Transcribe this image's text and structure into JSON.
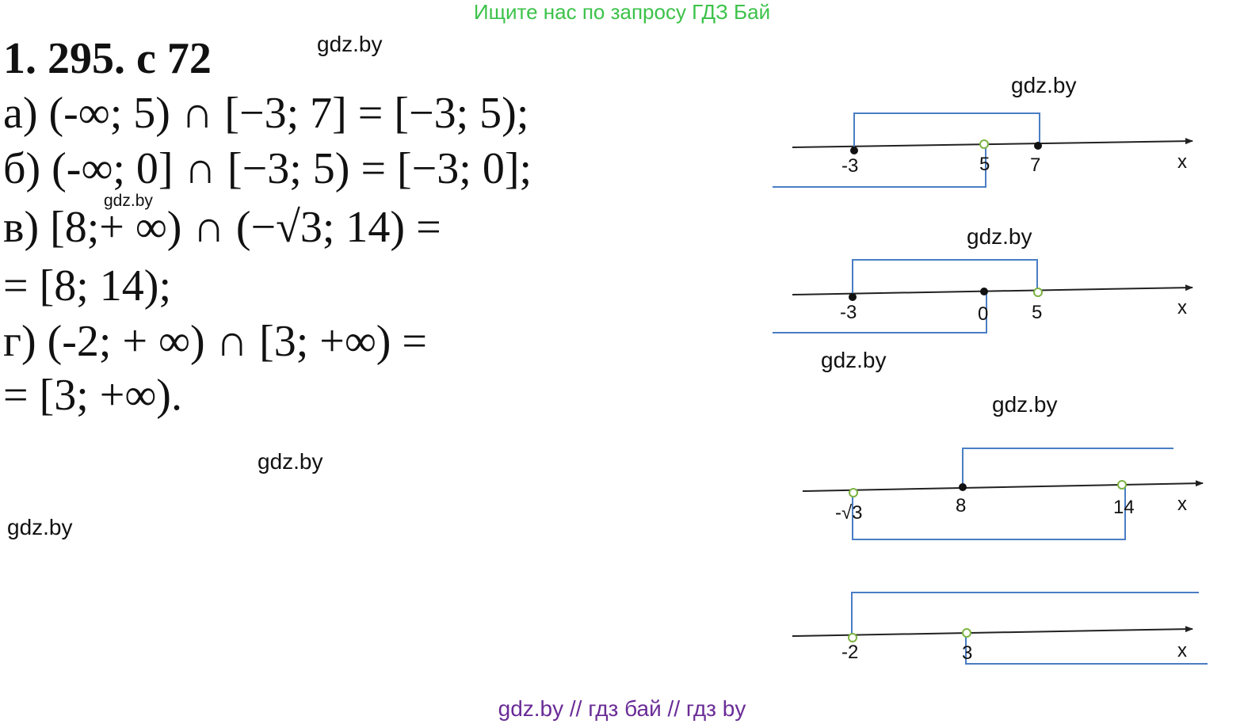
{
  "banner": "Ищите нас по запросу ГДЗ Бай",
  "title": "1. 295. с 72",
  "equations": {
    "a": "а) (-∞; 5) ∩ [−3; 7] = [−3; 5);",
    "b": "б) (-∞; 0] ∩ [−3; 5) = [−3; 0];",
    "v1": "в) [8;+ ∞) ∩ (−√3; 14) =",
    "v2": "= [8; 14);",
    "g1": "г) (-2; + ∞) ∩ [3; +∞) =",
    "g2": "= [3; +∞)."
  },
  "watermark": "gdz.by",
  "number_lines": {
    "a": {
      "labels": [
        "-3",
        "5",
        "7",
        "x"
      ]
    },
    "b": {
      "labels": [
        "-3",
        "0",
        "5",
        "x"
      ]
    },
    "v": {
      "labels": [
        "-√3",
        "8",
        "14",
        "x"
      ]
    },
    "g": {
      "labels": [
        "-2",
        "3",
        "x"
      ]
    }
  },
  "colors": {
    "bracket": "#4a7ec4",
    "open_point": "#7cb342",
    "axis": "#222222",
    "banner": "#3cc24a",
    "footer": "#6a2c96"
  },
  "footer": "gdz.by  //  гдз бай  //  гдз by"
}
